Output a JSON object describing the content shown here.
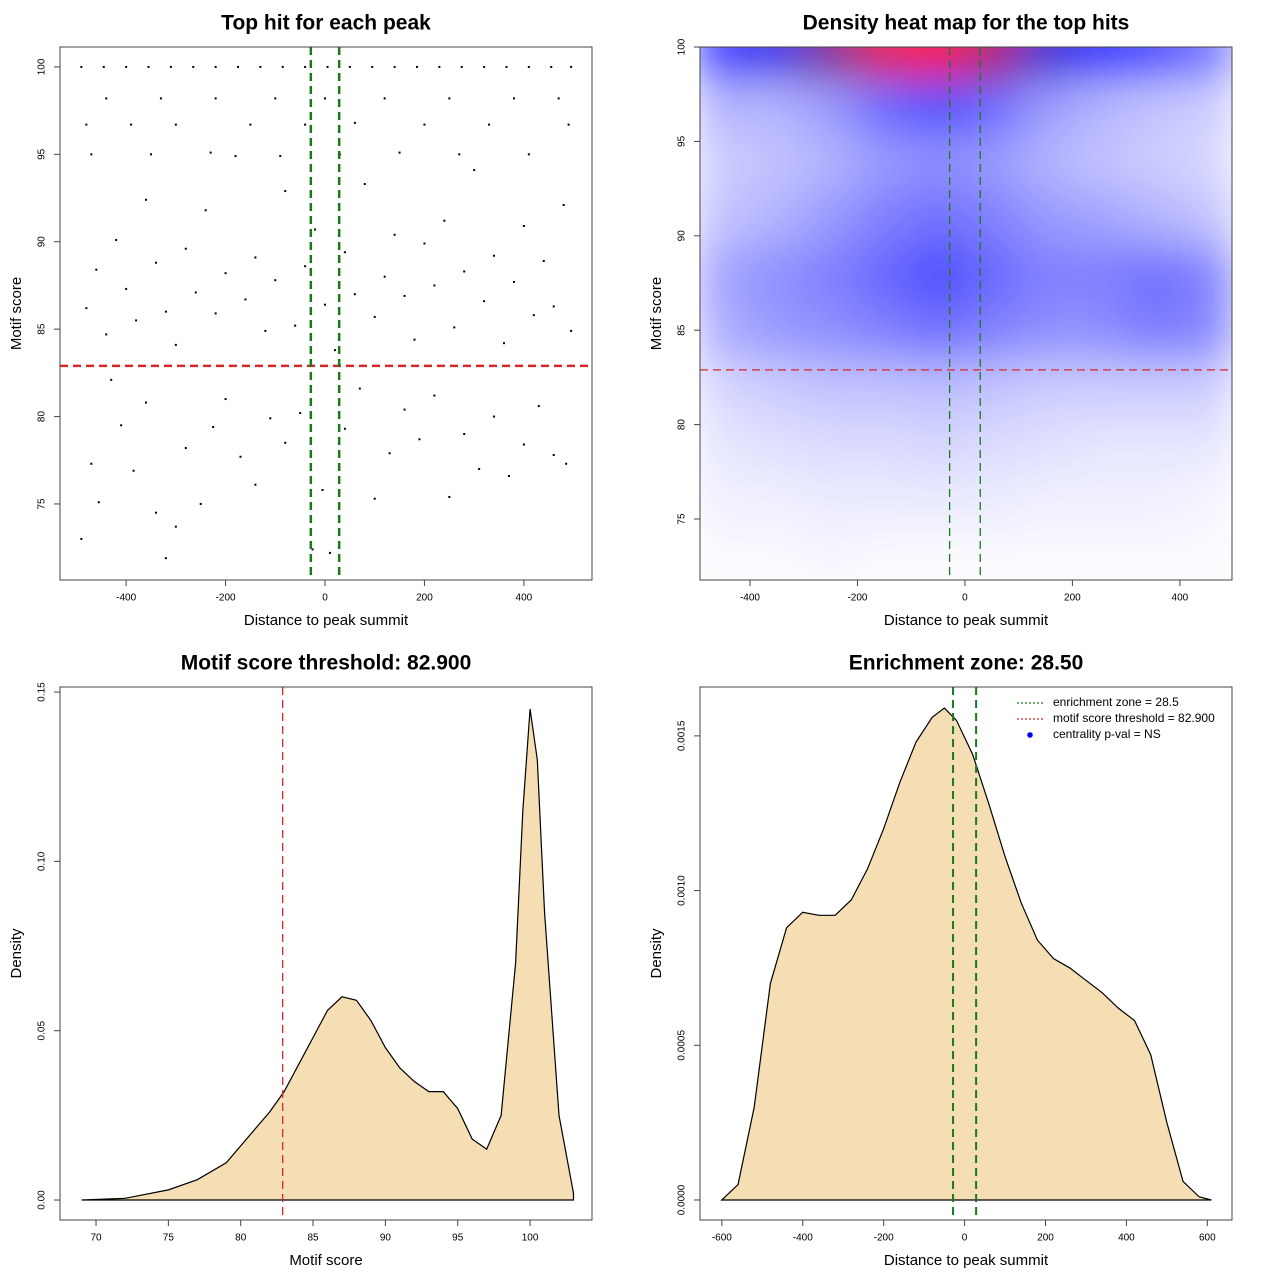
{
  "chart_data": [
    {
      "type": "scatter",
      "title": "Top hit for each peak",
      "xlabel": "Distance to peak summit",
      "ylabel": "Motif score",
      "x": [
        -490,
        -470,
        -455,
        -430,
        -410,
        -385,
        -360,
        -340,
        -320,
        -300,
        -280,
        -250,
        -225,
        -200,
        -170,
        -140,
        -110,
        -80,
        -50,
        -25,
        -5,
        10,
        40,
        70,
        100,
        130,
        160,
        190,
        220,
        250,
        280,
        310,
        340,
        370,
        400,
        430,
        460,
        485,
        -480,
        -460,
        -440,
        -420,
        -400,
        -380,
        -360,
        -340,
        -320,
        -300,
        -280,
        -260,
        -240,
        -220,
        -200,
        -180,
        -160,
        -140,
        -120,
        -100,
        -80,
        -60,
        -40,
        -20,
        0,
        20,
        40,
        60,
        80,
        100,
        120,
        140,
        160,
        180,
        200,
        220,
        240,
        260,
        280,
        300,
        320,
        340,
        360,
        380,
        400,
        420,
        440,
        460,
        480,
        495,
        -470,
        -350,
        -230,
        -90,
        30,
        150,
        270,
        410,
        -480,
        -390,
        -300,
        -150,
        -40,
        60,
        200,
        330,
        490,
        -440,
        -330,
        -220,
        -100,
        0,
        120,
        250,
        380,
        470,
        -490,
        -445,
        -400,
        -355,
        -310,
        -265,
        -220,
        -175,
        -130,
        -85,
        -40,
        5,
        50,
        95,
        140,
        185,
        230,
        275,
        320,
        365,
        410,
        455,
        495
      ],
      "y": [
        73,
        77.3,
        75.1,
        82.1,
        79.5,
        76.9,
        80.8,
        74.5,
        71.9,
        73.7,
        78.2,
        75,
        79.4,
        81,
        77.7,
        76.1,
        79.9,
        78.5,
        80.2,
        72.4,
        75.8,
        72.2,
        79.3,
        81.6,
        75.3,
        77.9,
        80.4,
        78.7,
        81.2,
        75.4,
        79,
        77,
        80,
        76.6,
        78.4,
        80.6,
        77.8,
        77.3,
        86.2,
        88.4,
        84.7,
        90.1,
        87.3,
        85.5,
        92.4,
        88.8,
        86,
        84.1,
        89.6,
        87.1,
        91.8,
        85.9,
        88.2,
        94.9,
        86.7,
        89.1,
        84.9,
        87.8,
        92.9,
        85.2,
        88.6,
        90.7,
        86.4,
        83.8,
        89.4,
        87,
        93.3,
        85.7,
        88,
        90.4,
        86.9,
        84.4,
        89.9,
        87.5,
        91.2,
        85.1,
        88.3,
        94.1,
        86.6,
        89.2,
        84.2,
        87.7,
        90.9,
        85.8,
        88.9,
        86.3,
        92.1,
        84.9,
        95,
        95,
        95.1,
        94.9,
        95,
        95.1,
        95,
        95,
        96.7,
        96.7,
        96.7,
        96.7,
        96.7,
        96.8,
        96.7,
        96.7,
        96.7,
        98.2,
        98.2,
        98.2,
        98.2,
        98.2,
        98.2,
        98.2,
        98.2,
        98.2,
        100,
        100,
        100,
        100,
        100,
        100,
        100,
        100,
        100,
        100,
        100,
        100,
        100,
        100,
        100,
        100,
        100,
        100,
        100,
        100,
        100,
        100,
        100
      ],
      "color": "#000000",
      "xlim": [
        -533,
        537
      ],
      "ylim": [
        70.65,
        101.14
      ],
      "xticks": [
        -400,
        -200,
        0,
        200,
        400
      ],
      "yticks": [
        75,
        80,
        85,
        90,
        95,
        100
      ],
      "hlines": [
        {
          "value": 82.9,
          "color": "#d62728"
        }
      ],
      "vlines": [
        {
          "value": -28.5,
          "color": "#1a7a1a"
        },
        {
          "value": 28.5,
          "color": "#1a7a1a"
        }
      ],
      "line_width": 2.5
    },
    {
      "type": "heatmap",
      "title": "Density heat map for the top hits",
      "xlabel": "Distance to peak summit",
      "ylabel": "Motif score",
      "x": [
        -450,
        -350,
        -250,
        -150,
        -50,
        50,
        150,
        250,
        350,
        450
      ],
      "y": [
        73,
        76,
        79,
        82,
        85,
        88,
        91,
        94,
        97,
        100
      ],
      "z": [
        [
          0.01,
          0.01,
          0.02,
          0.01,
          0.01,
          0.01,
          0.01,
          0.01,
          0.01,
          0.01
        ],
        [
          0.03,
          0.03,
          0.04,
          0.04,
          0.04,
          0.04,
          0.03,
          0.03,
          0.03,
          0.02
        ],
        [
          0.05,
          0.06,
          0.07,
          0.07,
          0.08,
          0.07,
          0.06,
          0.05,
          0.05,
          0.05
        ],
        [
          0.08,
          0.1,
          0.12,
          0.12,
          0.13,
          0.12,
          0.1,
          0.1,
          0.1,
          0.1
        ],
        [
          0.16,
          0.2,
          0.22,
          0.25,
          0.28,
          0.25,
          0.22,
          0.22,
          0.26,
          0.24
        ],
        [
          0.18,
          0.22,
          0.25,
          0.3,
          0.35,
          0.3,
          0.25,
          0.25,
          0.28,
          0.25
        ],
        [
          0.12,
          0.15,
          0.2,
          0.25,
          0.28,
          0.25,
          0.2,
          0.18,
          0.15,
          0.12
        ],
        [
          0.1,
          0.12,
          0.15,
          0.2,
          0.22,
          0.2,
          0.15,
          0.12,
          0.1,
          0.08
        ],
        [
          0.15,
          0.15,
          0.2,
          0.3,
          0.35,
          0.3,
          0.2,
          0.15,
          0.12,
          0.1
        ],
        [
          0.45,
          0.55,
          0.75,
          0.95,
          1,
          0.85,
          0.6,
          0.5,
          0.4,
          0.3
        ]
      ],
      "colors": [
        "#ffffff",
        "#0000ff",
        "#ff0000"
      ],
      "xlim": [
        -493,
        497
      ],
      "ylim": [
        71.77,
        100
      ],
      "xticks": [
        -400,
        -200,
        0,
        200,
        400
      ],
      "yticks": [
        75,
        80,
        85,
        90,
        95,
        100
      ],
      "hlines": [
        {
          "value": 82.9,
          "color": "#d62728"
        }
      ],
      "vlines": [
        {
          "value": -28.5,
          "color": "#1a7a1a"
        },
        {
          "value": 28.5,
          "color": "#1a7a1a"
        }
      ],
      "line_width": 1.3
    },
    {
      "type": "area",
      "title": "Motif score threshold: 82.900",
      "xlabel": "Motif score",
      "ylabel": "Density",
      "x": [
        69,
        72,
        75,
        77,
        79,
        80,
        81,
        82,
        83,
        84,
        85,
        86,
        87,
        88,
        89,
        90,
        91,
        92,
        93,
        94,
        95,
        96,
        97,
        98,
        99,
        99.5,
        100,
        100.5,
        101,
        102,
        103
      ],
      "values": [
        0,
        0.0005,
        0.003,
        0.006,
        0.011,
        0.016,
        0.021,
        0.026,
        0.032,
        0.04,
        0.048,
        0.056,
        0.06,
        0.059,
        0.053,
        0.045,
        0.039,
        0.035,
        0.032,
        0.032,
        0.027,
        0.018,
        0.015,
        0.025,
        0.07,
        0.115,
        0.145,
        0.13,
        0.085,
        0.025,
        0.002
      ],
      "color": "#f5deb3",
      "xlim": [
        67.51,
        104.28
      ],
      "ylim": [
        -0.0059,
        0.1515
      ],
      "xticks": [
        70,
        75,
        80,
        85,
        90,
        95,
        100
      ],
      "yticks": [
        {
          "value": 0,
          "label": "0.00"
        },
        0.05,
        {
          "value": 0.1,
          "label": "0.10"
        },
        0.15
      ],
      "vlines": [
        {
          "value": 82.9,
          "color": "#d62728"
        }
      ],
      "line_width": 1.3
    },
    {
      "type": "area",
      "title": "Enrichment zone: 28.50",
      "xlabel": "Distance to peak summit",
      "ylabel": "Density",
      "x": [
        -600,
        -560,
        -520,
        -480,
        -440,
        -400,
        -360,
        -320,
        -280,
        -240,
        -200,
        -160,
        -120,
        -80,
        -50,
        -20,
        20,
        60,
        100,
        140,
        180,
        220,
        260,
        300,
        340,
        380,
        420,
        460,
        500,
        540,
        580,
        610
      ],
      "values": [
        0,
        5e-05,
        0.0003,
        0.0007,
        0.00088,
        0.00093,
        0.00092,
        0.00092,
        0.00097,
        0.00107,
        0.0012,
        0.00135,
        0.00148,
        0.00156,
        0.00159,
        0.00155,
        0.00144,
        0.00128,
        0.00111,
        0.00096,
        0.00084,
        0.00078,
        0.00075,
        0.00071,
        0.00067,
        0.00062,
        0.00058,
        0.00047,
        0.00025,
        6e-05,
        1e-05,
        0
      ],
      "color": "#f5deb3",
      "xlim": [
        -654,
        661
      ],
      "ylim": [
        -6.47e-05,
        0.001658
      ],
      "xticks": [
        -600,
        -400,
        -200,
        0,
        200,
        400,
        600
      ],
      "yticks": [
        {
          "value": 0,
          "label": "0.0000"
        },
        0.0005,
        {
          "value": 0.001,
          "label": "0.0010"
        },
        0.0015
      ],
      "vlines": [
        {
          "value": -28.5,
          "color": "#1a7a1a"
        },
        {
          "value": 28.5,
          "color": "#1a7a1a"
        }
      ],
      "line_width": 2,
      "legend": [
        {
          "label": "enrichment zone = 28.5",
          "color": "#1a7a1a",
          "marker": "dotted"
        },
        {
          "label": "motif score threshold = 82.900",
          "color": "#d62728",
          "marker": "dotted"
        },
        {
          "label": "centrality p-val = NS",
          "color": "#0000ff",
          "marker": "point"
        }
      ],
      "legend_position": "top-right"
    }
  ]
}
